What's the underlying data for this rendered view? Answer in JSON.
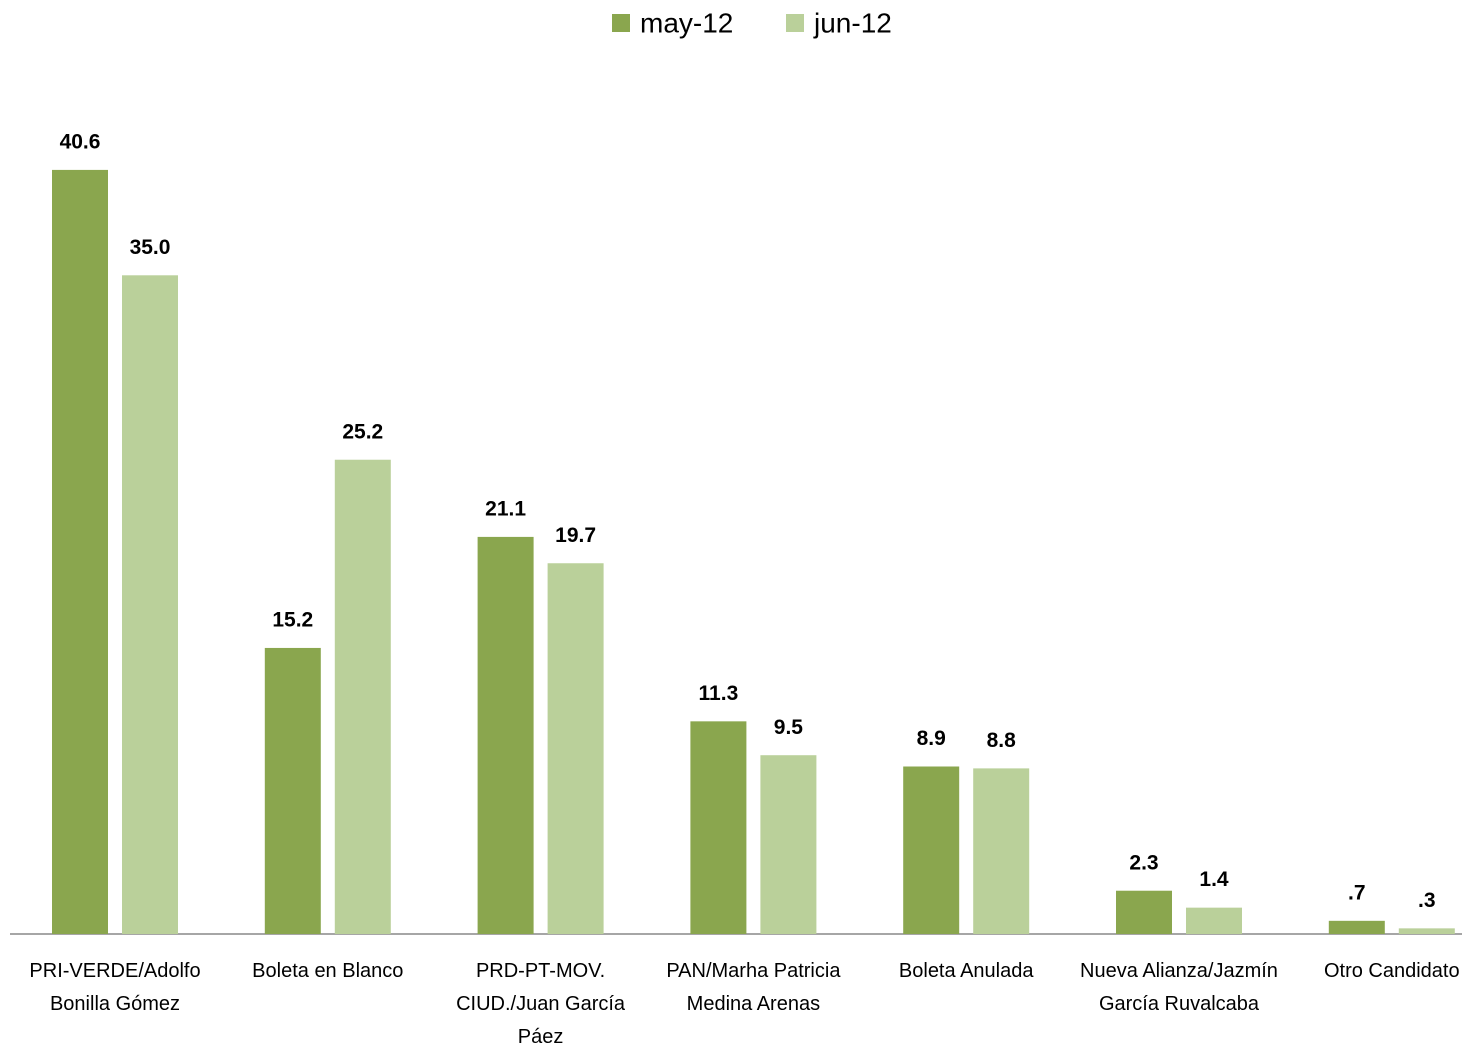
{
  "chart_data": {
    "type": "bar",
    "categories": [
      "PRI-VERDE/Adolfo Bonilla Gómez",
      "Boleta en Blanco",
      "PRD-PT-MOV. CIUD./Juan García Páez",
      "PAN/Marha Patricia Medina Arenas",
      "Boleta Anulada",
      "Nueva Alianza/Jazmín García Ruvalcaba",
      "Otro Candidato"
    ],
    "series": [
      {
        "name": "may-12",
        "color": "#8aa64e",
        "values": [
          40.6,
          15.2,
          21.1,
          11.3,
          8.9,
          2.3,
          0.7
        ],
        "value_labels": [
          "40.6",
          "15.2",
          "21.1",
          "11.3",
          "8.9",
          "2.3",
          ".7"
        ]
      },
      {
        "name": "jun-12",
        "color": "#bad09a",
        "values": [
          35.0,
          25.2,
          19.7,
          9.5,
          8.8,
          1.4,
          0.3
        ],
        "value_labels": [
          "35.0",
          "25.2",
          "19.7",
          "9.5",
          "8.8",
          "1.4",
          ".3"
        ]
      }
    ],
    "ylim": [
      0,
      45
    ],
    "legend": "top"
  }
}
